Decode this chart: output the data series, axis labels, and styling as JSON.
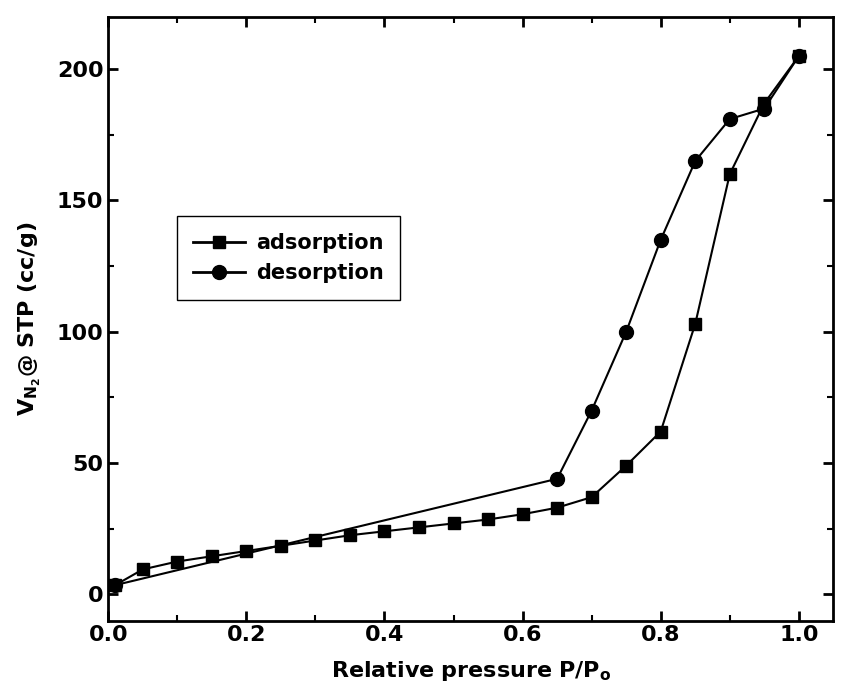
{
  "adsorption_x": [
    0.01,
    0.05,
    0.1,
    0.15,
    0.2,
    0.25,
    0.3,
    0.35,
    0.4,
    0.45,
    0.5,
    0.55,
    0.6,
    0.65,
    0.7,
    0.75,
    0.8,
    0.85,
    0.9,
    0.95,
    1.0
  ],
  "adsorption_y": [
    3.5,
    9.5,
    12.5,
    14.5,
    16.5,
    18.5,
    20.5,
    22.5,
    24.0,
    25.5,
    27.0,
    28.5,
    30.5,
    33.0,
    37.0,
    49.0,
    62.0,
    103.0,
    160.0,
    187.0,
    205.0
  ],
  "desorption_x": [
    0.01,
    0.65,
    0.7,
    0.75,
    0.8,
    0.85,
    0.9,
    0.95,
    1.0
  ],
  "desorption_y": [
    3.5,
    44.0,
    70.0,
    100.0,
    135.0,
    165.0,
    181.0,
    185.0,
    205.0
  ],
  "xlabel": "Relative pressure P/P",
  "ylabel": "V",
  "xlim": [
    0.0,
    1.05
  ],
  "ylim": [
    -10,
    220
  ],
  "xticks": [
    0.0,
    0.2,
    0.4,
    0.6,
    0.8,
    1.0
  ],
  "yticks": [
    0,
    50,
    100,
    150,
    200
  ],
  "adsorption_color": "#000000",
  "desorption_color": "#000000",
  "legend_adsorption": "adsorption",
  "legend_desorption": "desorption",
  "background_color": "#ffffff",
  "linewidth": 1.5,
  "markersize_square": 9,
  "markersize_circle": 10,
  "spine_linewidth": 2.0,
  "tick_fontsize": 16,
  "label_fontsize": 16
}
